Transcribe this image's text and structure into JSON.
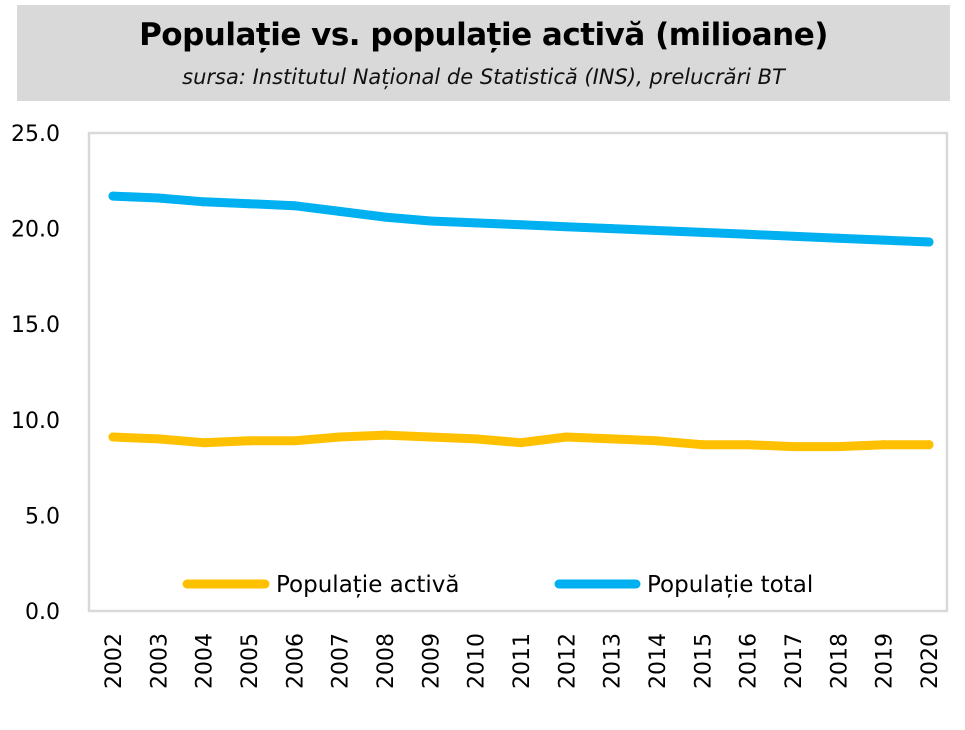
{
  "chart_data": {
    "type": "line",
    "title": "Populație vs. populație activă (milioane)",
    "subtitle": "sursa: Institutul Național de Statistică (INS), prelucrări BT",
    "x": [
      "2002",
      "2003",
      "2004",
      "2005",
      "2006",
      "2007",
      "2008",
      "2009",
      "2010",
      "2011",
      "2012",
      "2013",
      "2014",
      "2015",
      "2016",
      "2017",
      "2018",
      "2019",
      "2020"
    ],
    "ylim": [
      0,
      25
    ],
    "yticks": [
      "0.0",
      "5.0",
      "10.0",
      "15.0",
      "20.0",
      "25.0"
    ],
    "grid": false,
    "legend": "bottom-inside",
    "series": [
      {
        "name": "Populație activă",
        "color": "#ffc000",
        "values": [
          9.1,
          9.0,
          8.8,
          8.9,
          8.9,
          9.1,
          9.2,
          9.1,
          9.0,
          8.8,
          9.1,
          9.0,
          8.9,
          8.7,
          8.7,
          8.6,
          8.6,
          8.7,
          8.7
        ]
      },
      {
        "name": "Populație total",
        "color": "#00b0f0",
        "values": [
          21.7,
          21.6,
          21.4,
          21.3,
          21.2,
          20.9,
          20.6,
          20.4,
          20.3,
          20.2,
          20.1,
          20.0,
          19.9,
          19.8,
          19.7,
          19.6,
          19.5,
          19.4,
          19.3
        ]
      }
    ]
  }
}
